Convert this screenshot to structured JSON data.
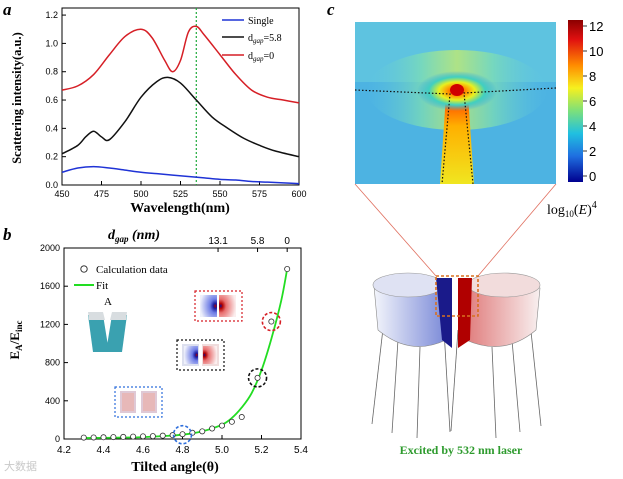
{
  "panels": {
    "a": {
      "label": "a"
    },
    "b": {
      "label": "b"
    },
    "c": {
      "label": "c"
    }
  },
  "chart_data": [
    {
      "type": "line",
      "panel": "a",
      "title": "",
      "xlabel": "Wavelength(nm)",
      "ylabel": "Scattering intensity(a.u.)",
      "xlim": [
        450,
        600
      ],
      "ylim": [
        0,
        1.25
      ],
      "xticks": [
        450,
        475,
        500,
        525,
        550,
        575,
        600
      ],
      "yticks": [
        0.0,
        0.2,
        0.4,
        0.6,
        0.8,
        1.0,
        1.2
      ],
      "vline": 535,
      "series": [
        {
          "name": "Single",
          "color": "#1f33d6",
          "x": [
            450,
            460,
            470,
            480,
            490,
            500,
            510,
            520,
            530,
            540,
            550,
            560,
            570,
            580,
            590,
            600
          ],
          "y": [
            0.09,
            0.12,
            0.13,
            0.12,
            0.105,
            0.09,
            0.08,
            0.07,
            0.06,
            0.05,
            0.04,
            0.035,
            0.025,
            0.02,
            0.015,
            0.01
          ]
        },
        {
          "name": "d_gap=5.8",
          "color": "#111111",
          "x": [
            450,
            460,
            465,
            470,
            475,
            480,
            490,
            500,
            510,
            517,
            525,
            535,
            545,
            555,
            565,
            575,
            585,
            600
          ],
          "y": [
            0.22,
            0.28,
            0.34,
            0.38,
            0.34,
            0.32,
            0.45,
            0.62,
            0.73,
            0.76,
            0.72,
            0.6,
            0.48,
            0.4,
            0.33,
            0.28,
            0.24,
            0.2
          ]
        },
        {
          "name": "d_gap=0",
          "color": "#d61f26",
          "x": [
            450,
            460,
            470,
            480,
            490,
            500,
            507,
            515,
            520,
            525,
            530,
            535,
            540,
            550,
            560,
            570,
            580,
            590,
            600
          ],
          "y": [
            0.67,
            0.7,
            0.78,
            0.92,
            1.05,
            1.1,
            1.04,
            0.88,
            0.8,
            0.88,
            1.08,
            1.12,
            1.06,
            0.92,
            0.78,
            0.67,
            0.62,
            0.6,
            0.58
          ]
        }
      ]
    },
    {
      "type": "scatter",
      "panel": "b",
      "xlabel": "Tilted angle(θ)",
      "ylabel": "EA/Einc",
      "top_axis_label": "dgap (nm)",
      "top_ticks": [
        {
          "label": "13.1",
          "at": 4.98
        },
        {
          "label": "5.8",
          "at": 5.18
        },
        {
          "label": "0",
          "at": 5.33
        }
      ],
      "xlim": [
        4.2,
        5.4
      ],
      "ylim": [
        0,
        2000
      ],
      "xticks": [
        4.2,
        4.4,
        4.6,
        4.8,
        5.0,
        5.2,
        5.4
      ],
      "yticks": [
        0,
        400,
        800,
        1200,
        1600,
        2000
      ],
      "series": [
        {
          "name": "Calculation data",
          "marker": "circle",
          "x": [
            4.3,
            4.35,
            4.4,
            4.45,
            4.5,
            4.55,
            4.6,
            4.65,
            4.7,
            4.75,
            4.8,
            4.85,
            4.9,
            4.95,
            5.0,
            5.05,
            5.1,
            5.18,
            5.25,
            5.33
          ],
          "y": [
            15,
            16,
            18,
            20,
            22,
            25,
            28,
            30,
            35,
            40,
            50,
            65,
            80,
            110,
            140,
            180,
            230,
            640,
            1230,
            1780
          ]
        },
        {
          "name": "Fit",
          "color": "#22dd22",
          "x": [
            4.3,
            4.4,
            4.5,
            4.6,
            4.7,
            4.8,
            4.9,
            5.0,
            5.05,
            5.1,
            5.15,
            5.2,
            5.25,
            5.3,
            5.33
          ],
          "y": [
            10,
            12,
            15,
            20,
            30,
            45,
            80,
            150,
            220,
            330,
            480,
            720,
            1050,
            1450,
            1780
          ]
        }
      ],
      "highlights": [
        {
          "x": 4.8,
          "y": 45,
          "color": "#2f6fdc"
        },
        {
          "x": 5.18,
          "y": 640,
          "color": "#111111"
        },
        {
          "x": 5.25,
          "y": 1230,
          "color": "#d61f26"
        }
      ],
      "inset_label": "A"
    },
    {
      "type": "heatmap",
      "panel": "c",
      "colorbar_ticks": [
        12,
        10,
        8,
        6,
        4,
        2,
        0
      ],
      "colorbar_label": "log10(E)4",
      "caption": "Excited by 532 nm laser"
    }
  ],
  "watermark": "大数据"
}
